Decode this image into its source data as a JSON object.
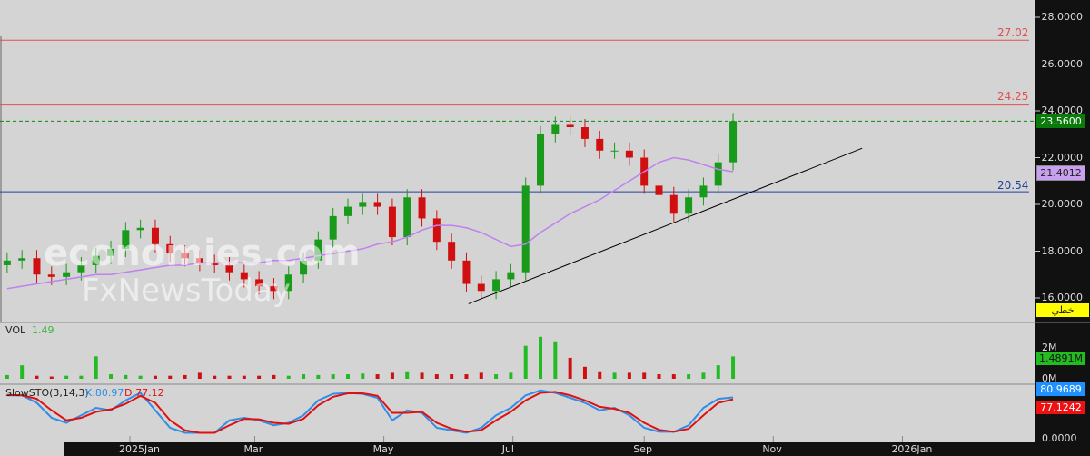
{
  "chart_data": {
    "type": "candlestick",
    "start_date": "2024-11-04",
    "interval": "weekly",
    "close": [
      17.6,
      17.7,
      17.0,
      16.9,
      17.1,
      17.4,
      17.8,
      18.1,
      18.9,
      19.0,
      18.3,
      17.9,
      17.7,
      17.5,
      17.4,
      17.1,
      16.8,
      16.5,
      16.3,
      17.0,
      17.6,
      18.5,
      19.5,
      19.9,
      20.1,
      19.9,
      18.6,
      20.3,
      19.4,
      18.4,
      17.6,
      16.6,
      16.3,
      16.8,
      17.1,
      20.8,
      23.0,
      23.4,
      23.3,
      22.8,
      22.3,
      22.3,
      22.0,
      20.8,
      20.4,
      19.6,
      20.3,
      20.8,
      21.8,
      23.56
    ],
    "ma": [
      16.4,
      16.5,
      16.6,
      16.7,
      16.8,
      16.9,
      17.0,
      17.0,
      17.1,
      17.2,
      17.3,
      17.4,
      17.4,
      17.5,
      17.5,
      17.5,
      17.5,
      17.5,
      17.6,
      17.6,
      17.7,
      17.8,
      17.9,
      18.0,
      18.1,
      18.3,
      18.4,
      18.6,
      18.9,
      19.1,
      19.1,
      19.0,
      18.8,
      18.5,
      18.2,
      18.3,
      18.8,
      19.2,
      19.6,
      19.9,
      20.2,
      20.6,
      21.0,
      21.4,
      21.8,
      22.0,
      21.9,
      21.7,
      21.5,
      21.4
    ],
    "volume_m": [
      0.25,
      0.9,
      0.2,
      0.15,
      0.2,
      0.2,
      1.5,
      0.3,
      0.25,
      0.2,
      0.2,
      0.2,
      0.25,
      0.4,
      0.2,
      0.2,
      0.2,
      0.2,
      0.25,
      0.2,
      0.3,
      0.25,
      0.3,
      0.3,
      0.35,
      0.3,
      0.4,
      0.5,
      0.4,
      0.3,
      0.3,
      0.3,
      0.4,
      0.3,
      0.4,
      2.2,
      2.8,
      2.5,
      1.4,
      0.8,
      0.5,
      0.4,
      0.4,
      0.4,
      0.3,
      0.3,
      0.3,
      0.4,
      0.9,
      1.49
    ],
    "stoch_k": [
      85,
      85,
      70,
      40,
      30,
      45,
      60,
      55,
      75,
      90,
      55,
      20,
      10,
      10,
      10,
      35,
      40,
      35,
      25,
      30,
      45,
      75,
      88,
      90,
      88,
      80,
      35,
      55,
      50,
      20,
      15,
      10,
      20,
      45,
      60,
      85,
      95,
      90,
      80,
      70,
      55,
      60,
      45,
      20,
      12,
      12,
      25,
      60,
      78,
      81
    ],
    "stoch_d": [
      86,
      85,
      78,
      55,
      35,
      40,
      52,
      57,
      68,
      84,
      70,
      35,
      15,
      10,
      10,
      25,
      38,
      37,
      30,
      28,
      38,
      65,
      82,
      89,
      89,
      84,
      50,
      50,
      52,
      30,
      18,
      12,
      15,
      35,
      52,
      75,
      90,
      92,
      85,
      75,
      62,
      58,
      50,
      30,
      16,
      12,
      18,
      45,
      70,
      77
    ],
    "price_axis": {
      "ylim": [
        15.2,
        28.7
      ],
      "ticks": [
        "28.0000",
        "26.0000",
        "24.0000",
        "22.0000",
        "20.0000",
        "18.0000",
        "16.0000"
      ],
      "tick_values": [
        28,
        26,
        24,
        22,
        20,
        18,
        16
      ]
    },
    "x_tick_labels": [
      "2025Jan",
      "Mar",
      "May",
      "Jul",
      "Sep",
      "Nov",
      "2026Jan"
    ],
    "x_tick_dates": [
      "2025-01-01",
      "2025-03-01",
      "2025-05-01",
      "2025-07-01",
      "2025-09-01",
      "2025-11-01",
      "2026-01-01"
    ],
    "levels": [
      {
        "label": "27.02",
        "value": 27.02,
        "color": "#e05050"
      },
      {
        "label": "24.25",
        "value": 24.25,
        "color": "#e05050"
      },
      {
        "label": "20.54",
        "value": 20.54,
        "color": "#2040a0"
      }
    ],
    "last_price": {
      "label": "23.5600",
      "value": 23.56,
      "color": "#0a7a0a"
    },
    "ma_tag": {
      "label": "21.4012",
      "color": "#c9a0f0"
    },
    "trendline": [
      [
        "2025-06-10",
        15.75
      ],
      [
        "2025-12-13",
        22.4
      ]
    ],
    "style_tag": "خطي",
    "volume": {
      "title": "VOL",
      "value": "1.49",
      "ticks": [
        "2M",
        "0M"
      ],
      "tag": "1.4891M"
    },
    "stoch": {
      "title": "SlowSTO(3,14,3)",
      "k_label": "K:80.97",
      "d_label": "D:77.12",
      "k_tag": "80.9689",
      "d_tag": "77.1242",
      "axis_label": "0.0000",
      "k_color": "#2e8ee8",
      "d_color": "#e01010"
    }
  },
  "watermark": {
    "line1": "economies.com",
    "line2": "FxNewsToday"
  }
}
